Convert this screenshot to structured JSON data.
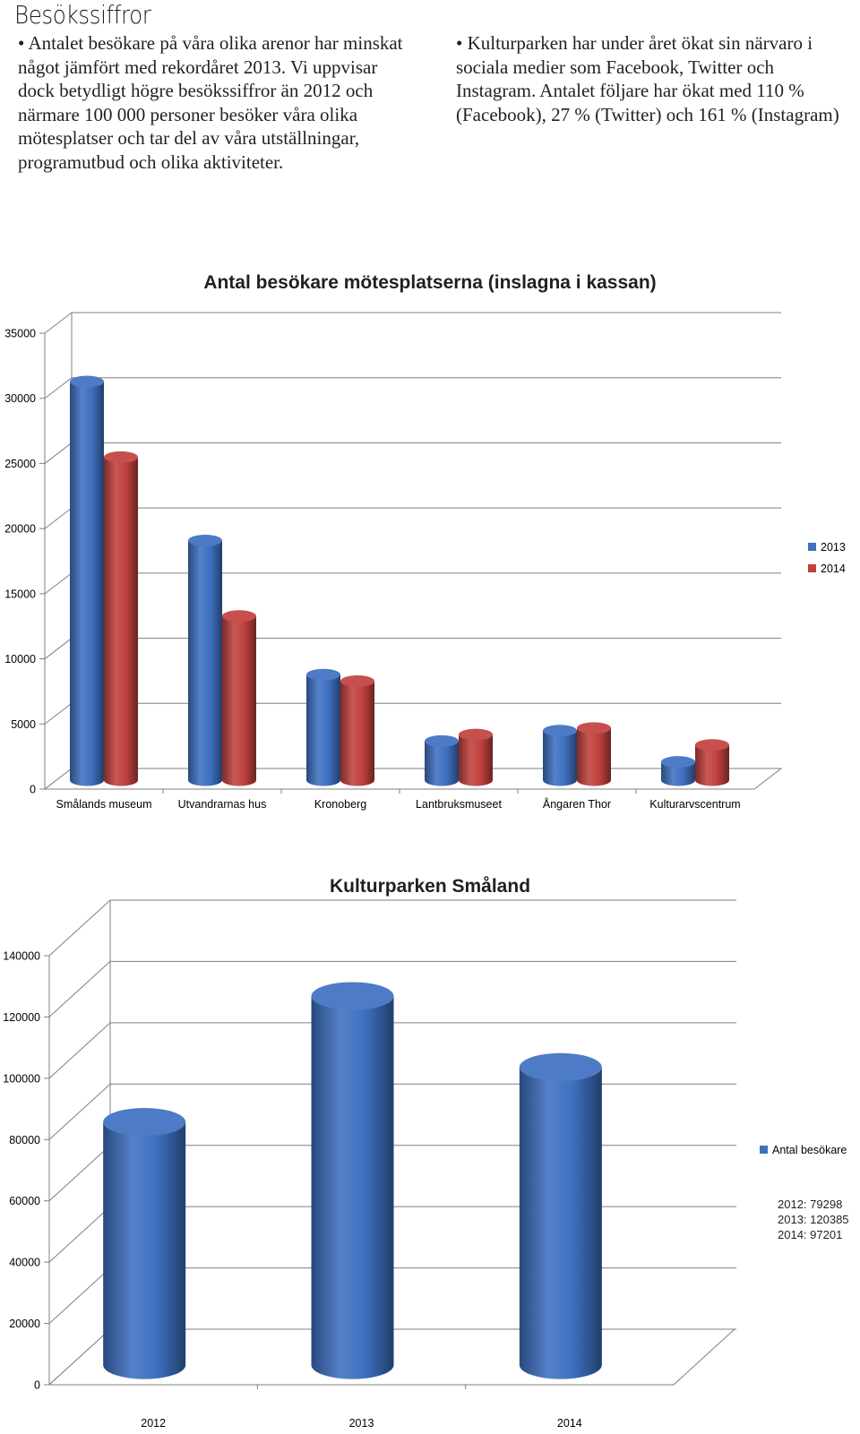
{
  "page": {
    "heading": "Besökssiffror",
    "paragraph_left": "• Antalet besökare på våra olika arenor har minskat något jämfört med rekordåret 2013. Vi uppvisar dock betydligt högre besökssiffror än 2012 och närmare 100 000 personer besöker våra olika mötesplatser och tar del av våra utställningar, programutbud och olika aktiviteter.",
    "paragraph_right": "• Kulturparken har under året ökat sin närvaro i sociala medier som Facebook, Twitter och Instagram. Antalet följare har ökat med 110 % (Facebook), 27 % (Twitter) och 161 % (Instagram)",
    "chart2_values_text": [
      "2012: 79298",
      "2013: 120385",
      "2014: 97201"
    ]
  },
  "chart_data": [
    {
      "type": "bar",
      "title": "Antal besökare mötesplatserna (inslagna i kassan)",
      "categories": [
        "Smålands museum",
        "Utvandrarnas hus",
        "Kronoberg",
        "Lantbruksmuseet",
        "Ångaren Thor",
        "Kulturarvscentrum"
      ],
      "series": [
        {
          "name": "2013",
          "color": "#3e70c0",
          "values": [
            30600,
            18400,
            8100,
            3000,
            3800,
            1400
          ]
        },
        {
          "name": "2014",
          "color": "#c0413d",
          "values": [
            24800,
            12600,
            7600,
            3500,
            4000,
            2700
          ]
        }
      ],
      "ylim": [
        0,
        35000
      ],
      "yticks": [
        0,
        5000,
        10000,
        15000,
        20000,
        25000,
        30000,
        35000
      ],
      "grid": true,
      "legend": "right"
    },
    {
      "type": "bar",
      "title": "Kulturparken Småland",
      "categories": [
        "2012",
        "2013",
        "2014"
      ],
      "series": [
        {
          "name": "Antal besökare",
          "color": "#3e70c0",
          "values": [
            79298,
            120385,
            97201
          ]
        }
      ],
      "ylim": [
        0,
        140000
      ],
      "yticks": [
        0,
        20000,
        40000,
        60000,
        80000,
        100000,
        120000,
        140000
      ],
      "grid": true,
      "legend": "right"
    }
  ]
}
